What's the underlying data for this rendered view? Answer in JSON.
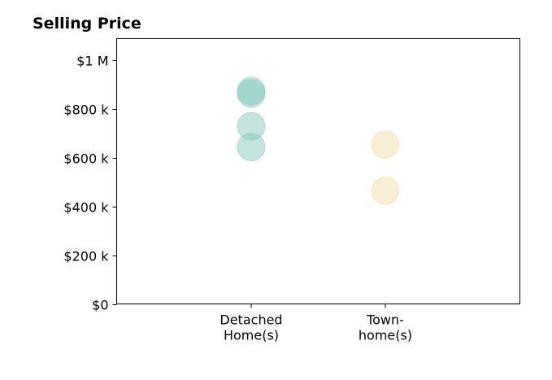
{
  "chart_data": {
    "type": "scatter",
    "title": "Selling Price",
    "xlabel": "",
    "ylabel": "",
    "categories": [
      [
        "Detached",
        "Home(s)"
      ],
      [
        "Town-",
        "home(s)"
      ]
    ],
    "y_ticks": [
      "$0",
      "$200 k",
      "$400 k",
      "$600 k",
      "$800 k",
      "$1 M"
    ],
    "y_tick_values": [
      0,
      200000,
      400000,
      600000,
      800000,
      1000000
    ],
    "ylim": [
      0,
      1090000
    ],
    "grid": false,
    "legend": "none",
    "series": [
      {
        "category": "Detached Home(s)",
        "color": "#7cc5b8",
        "values": [
          875000,
          865000,
          730000,
          645000
        ]
      },
      {
        "category": "Town-home(s)",
        "color": "#f0d9a0",
        "values": [
          655000,
          465000
        ]
      }
    ]
  }
}
